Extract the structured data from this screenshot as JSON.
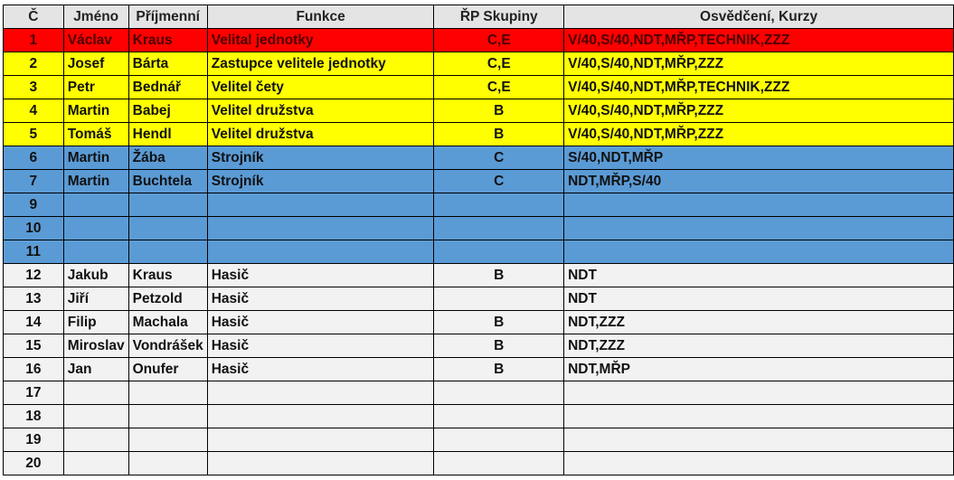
{
  "colors": {
    "red": "#ff0000",
    "yellow": "#ffff00",
    "blue": "#5b9bd5",
    "gray": "#f2f2f2",
    "header": "#e4e4e4"
  },
  "table": {
    "headers": [
      "Č",
      "Jméno",
      "Příjmenní",
      "Funkce",
      "ŘP Skupiny",
      "Osvědčení, Kurzy"
    ],
    "rows": [
      {
        "color": "red",
        "cells": [
          "1",
          "Václav",
          "Kraus",
          "Velital jednotky",
          "C,E",
          "V/40,S/40,NDT,MŘP,TECHNIK,ZZZ"
        ]
      },
      {
        "color": "yellow",
        "cells": [
          "2",
          "Josef",
          "Bárta",
          "Zastupce velitele jednotky",
          "C,E",
          "V/40,S/40,NDT,MŘP,ZZZ"
        ]
      },
      {
        "color": "yellow",
        "cells": [
          "3",
          "Petr",
          "Bednář",
          "Velitel čety",
          "C,E",
          "V/40,S/40,NDT,MŘP,TECHNIK,ZZZ"
        ]
      },
      {
        "color": "yellow",
        "cells": [
          "4",
          "Martin",
          "Babej",
          "Velitel družstva",
          "B",
          "V/40,S/40,NDT,MŘP,ZZZ"
        ]
      },
      {
        "color": "yellow",
        "cells": [
          "5",
          "Tomáš",
          "Hendl",
          "Velitel družstva",
          "B",
          "V/40,S/40,NDT,MŘP,ZZZ"
        ]
      },
      {
        "color": "blue",
        "cells": [
          "6",
          "Martin",
          "Žába",
          "Strojník",
          "C",
          "S/40,NDT,MŘP"
        ]
      },
      {
        "color": "blue",
        "cells": [
          "7",
          "Martin",
          "Buchtela",
          "Strojník",
          "C",
          "NDT,MŘP,S/40"
        ]
      },
      {
        "color": "blue",
        "cells": [
          "9",
          "",
          "",
          "",
          "",
          ""
        ]
      },
      {
        "color": "blue",
        "cells": [
          "10",
          "",
          "",
          "",
          "",
          ""
        ]
      },
      {
        "color": "blue",
        "cells": [
          "11",
          "",
          "",
          "",
          "",
          ""
        ]
      },
      {
        "color": "gray",
        "cells": [
          "12",
          "Jakub",
          "Kraus",
          "Hasič",
          "B",
          "NDT"
        ]
      },
      {
        "color": "gray",
        "cells": [
          "13",
          "Jiří",
          "Petzold",
          "Hasič",
          "",
          "NDT"
        ]
      },
      {
        "color": "gray",
        "cells": [
          "14",
          "Filip",
          "Machala",
          "Hasič",
          "B",
          "NDT,ZZZ"
        ]
      },
      {
        "color": "gray",
        "cells": [
          "15",
          "Miroslav",
          "Vondrášek",
          "Hasič",
          "B",
          "NDT,ZZZ"
        ]
      },
      {
        "color": "gray",
        "cells": [
          "16",
          "Jan",
          "Onufer",
          "Hasič",
          "B",
          "NDT,MŘP"
        ]
      },
      {
        "color": "gray",
        "cells": [
          "17",
          "",
          "",
          "",
          "",
          ""
        ]
      },
      {
        "color": "gray",
        "cells": [
          "18",
          "",
          "",
          "",
          "",
          ""
        ]
      },
      {
        "color": "gray",
        "cells": [
          "19",
          "",
          "",
          "",
          "",
          ""
        ]
      },
      {
        "color": "gray",
        "cells": [
          "20",
          "",
          "",
          "",
          "",
          ""
        ]
      }
    ]
  }
}
